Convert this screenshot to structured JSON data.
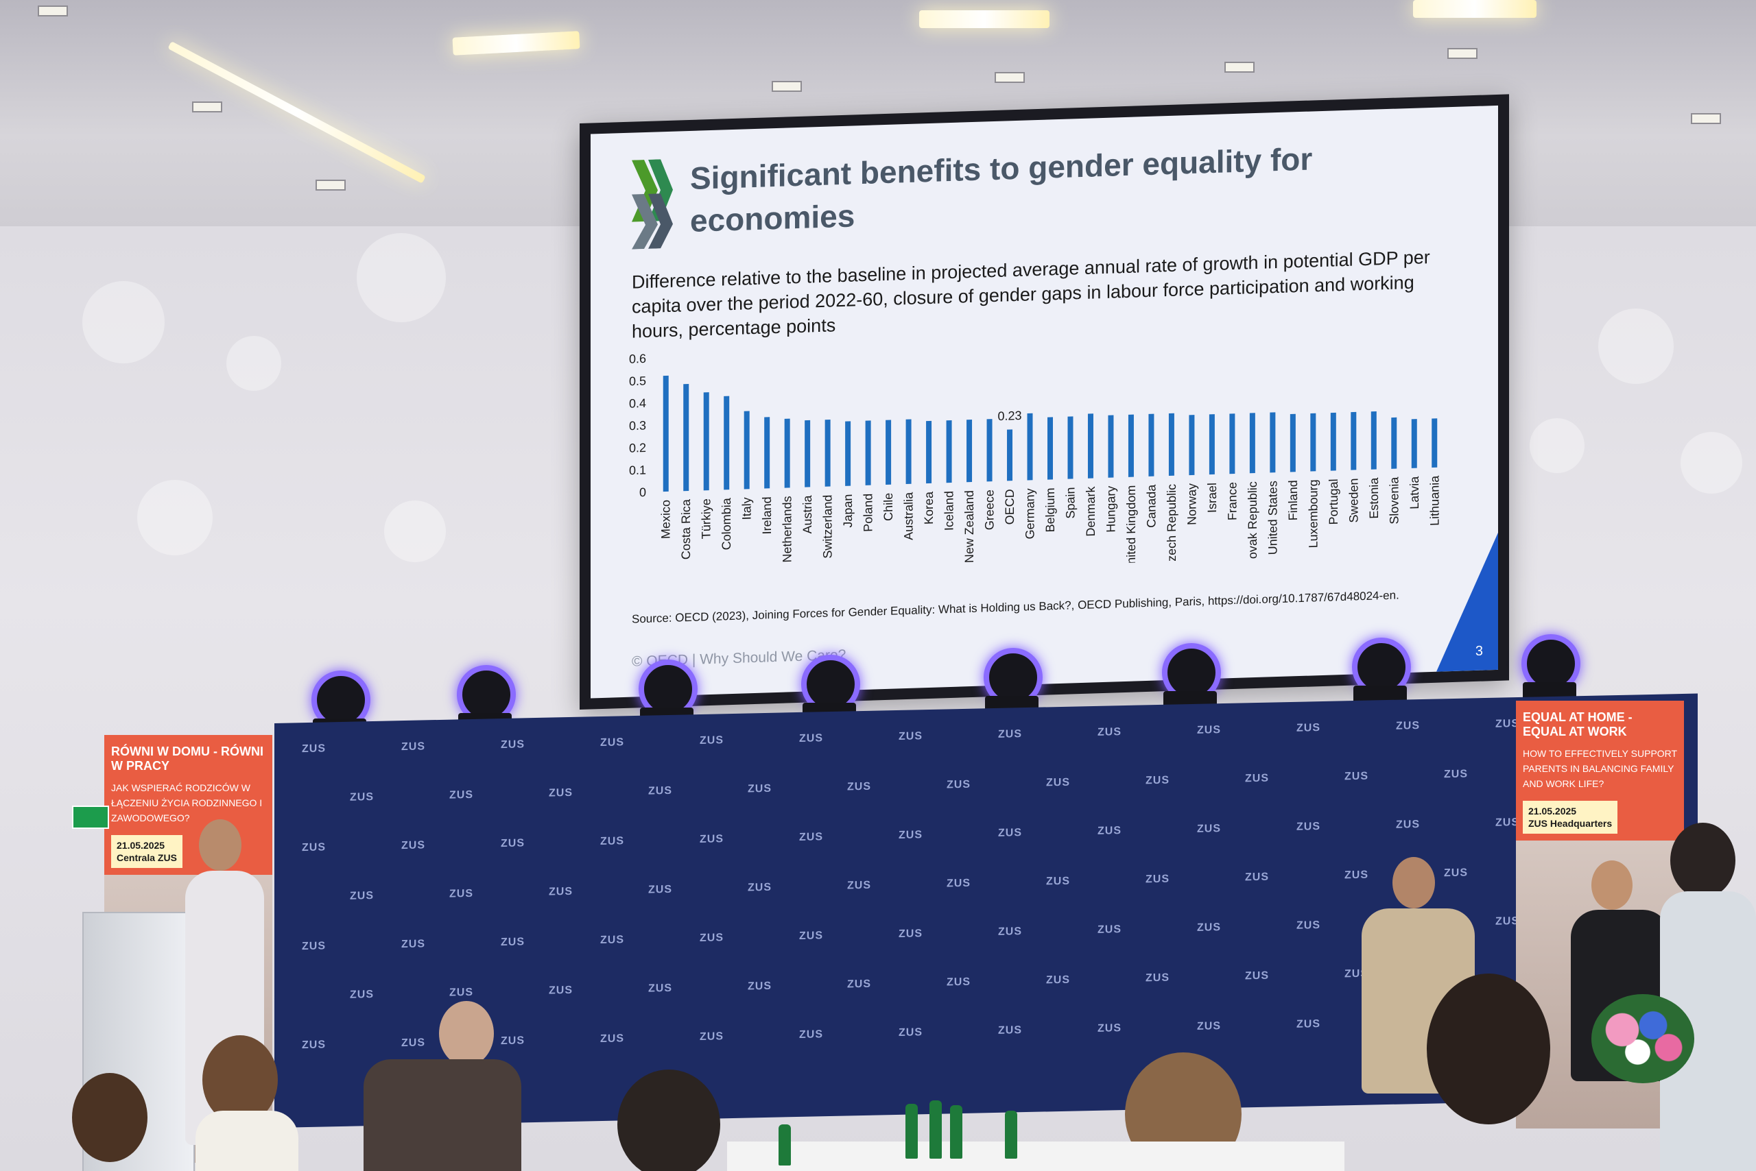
{
  "slide": {
    "title": "Significant benefits to gender equality for economies",
    "subtitle": "Difference relative to the baseline in projected average annual rate of growth in potential GDP per capita over the period 2022-60, closure of gender gaps in labour force participation and working hours, percentage points",
    "source": "Source: OECD (2023), Joining Forces for Gender Equality: What is Holding us Back?, OECD Publishing, Paris, https://doi.org/10.1787/67d48024-en.",
    "footer": "© OECD | Why Should We Care?",
    "page_number": "3"
  },
  "chart_data": {
    "type": "bar",
    "title": "",
    "xlabel": "",
    "ylabel": "",
    "ylim": [
      0,
      0.6
    ],
    "yticks": [
      "0.6",
      "0.5",
      "0.4",
      "0.3",
      "0.2",
      "0.1",
      "0"
    ],
    "annotation": {
      "category": "OECD",
      "label": "0.23"
    },
    "bar_color": "#1f6fc0",
    "categories": [
      "Mexico",
      "Costa Rica",
      "Türkiye",
      "Colombia",
      "Italy",
      "Ireland",
      "Netherlands",
      "Austria",
      "Switzerland",
      "Japan",
      "Poland",
      "Chile",
      "Australia",
      "Korea",
      "Iceland",
      "New Zealand",
      "Greece",
      "OECD",
      "Germany",
      "Belgium",
      "Spain",
      "Denmark",
      "Hungary",
      "United Kingdom",
      "Canada",
      "Czech Republic",
      "Norway",
      "Israel",
      "France",
      "Slovak Republic",
      "United States",
      "Finland",
      "Luxembourg",
      "Portugal",
      "Sweden",
      "Estonia",
      "Slovenia",
      "Latvia",
      "Lithuania"
    ],
    "values": [
      0.52,
      0.48,
      0.44,
      0.42,
      0.35,
      0.32,
      0.31,
      0.3,
      0.3,
      0.29,
      0.29,
      0.29,
      0.29,
      0.28,
      0.28,
      0.28,
      0.28,
      0.23,
      0.3,
      0.28,
      0.28,
      0.29,
      0.28,
      0.28,
      0.28,
      0.28,
      0.27,
      0.27,
      0.27,
      0.27,
      0.27,
      0.26,
      0.26,
      0.26,
      0.26,
      0.26,
      0.23,
      0.22,
      0.22
    ]
  },
  "banners": {
    "left": {
      "title": "RÓWNI W DOMU - RÓWNI W PRACY",
      "subtitle": "JAK WSPIERAĆ RODZICÓW W ŁĄCZENIU ŻYCIA RODZINNEGO I ZAWODOWEGO?",
      "date": "21.05.2025",
      "place": "Centrala ZUS"
    },
    "right": {
      "title": "EQUAL AT HOME - EQUAL AT WORK",
      "subtitle": "HOW TO EFFECTIVELY SUPPORT PARENTS IN BALANCING FAMILY AND WORK LIFE?",
      "date": "21.05.2025",
      "place": "ZUS Headquarters"
    }
  },
  "stage": {
    "logo_text": "ZUS"
  },
  "colors": {
    "slide_title": "#4a5868",
    "accent": "#1d58c8",
    "stage": "#1d2b63",
    "banner": "#e95d42",
    "lamp": "#8a6bff"
  }
}
